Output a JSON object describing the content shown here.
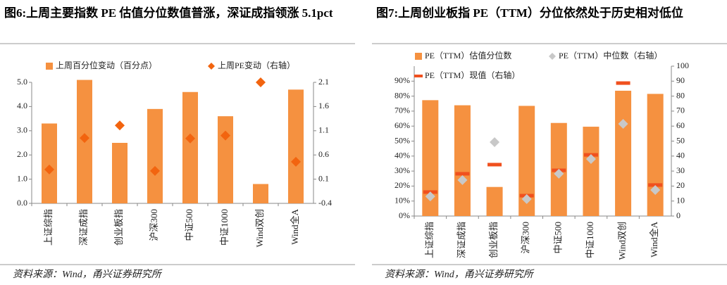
{
  "chart_data": [
    {
      "type": "bar",
      "title": "图6:上周主要指数 PE 估值分位数值普涨，深证成指领涨 5.1pct",
      "source": "资料来源：Wind，甬兴证券研究所",
      "categories": [
        "上证综指",
        "深证成指",
        "创业板指",
        "沪深300",
        "中证500",
        "中证1000",
        "Wind双创",
        "Wind全A"
      ],
      "ylim": [
        0,
        5
      ],
      "yticks": [
        {
          "value": 0,
          "label": "0.0"
        },
        {
          "value": 1,
          "label": "1.0"
        },
        {
          "value": 2,
          "label": "2.0"
        },
        {
          "value": 3,
          "label": "3.0"
        },
        {
          "value": 4,
          "label": "4.0"
        },
        {
          "value": 5,
          "label": "5.0"
        }
      ],
      "y2lim": [
        -0.4,
        2.1
      ],
      "y2ticks": [
        -0.4,
        0.1,
        0.6,
        1.1,
        1.6,
        2.1
      ],
      "series": [
        {
          "name": "上周百分位变动（百分点）",
          "marker": "bar",
          "color": "#f59140",
          "values": [
            3.3,
            5.1,
            2.5,
            3.9,
            4.6,
            3.6,
            0.8,
            4.7
          ]
        },
        {
          "name": "上周PE变动（右轴）",
          "marker": "diamond",
          "axis": "y2",
          "color": "#f2640f",
          "values": [
            0.3,
            0.95,
            1.21,
            0.27,
            0.94,
            1.0,
            2.1,
            0.46
          ]
        }
      ]
    },
    {
      "type": "bar",
      "title": "图7:上周创业板指 PE（TTM）分位依然处于历史相对低位",
      "source": "资料来源：Wind，甬兴证券研究所",
      "categories": [
        "上证综指",
        "深证成指",
        "创业板指",
        "沪深300",
        "中证500",
        "中证1000",
        "Wind双创",
        "Wind全A"
      ],
      "ylim": [
        0,
        100
      ],
      "yticks": [
        {
          "value": 0,
          "label": "0%"
        },
        {
          "value": 10,
          "label": "10%"
        },
        {
          "value": 20,
          "label": "20%"
        },
        {
          "value": 30,
          "label": "30%"
        },
        {
          "value": 40,
          "label": "40%"
        },
        {
          "value": 50,
          "label": "50%"
        },
        {
          "value": 60,
          "label": "60%"
        },
        {
          "value": 70,
          "label": "70%"
        },
        {
          "value": 80,
          "label": "80%"
        },
        {
          "value": 90,
          "label": "90%"
        }
      ],
      "y2lim": [
        0,
        100
      ],
      "y2ticks": [
        0,
        10,
        20,
        30,
        40,
        50,
        60,
        70,
        80,
        90,
        100
      ],
      "series": [
        {
          "name": "PE（TTM）估值分位数",
          "marker": "bar",
          "color": "#f59140",
          "values": [
            77.3,
            73.9,
            19.4,
            73.5,
            62.1,
            59.6,
            83.6,
            81.5
          ]
        },
        {
          "name": "PE（TTM）中位数（右轴）",
          "marker": "diamond",
          "axis": "y2",
          "color": "#c8c8c8",
          "values": [
            13.1,
            24,
            49.3,
            11.3,
            28.2,
            38,
            61.5,
            17.4
          ]
        },
        {
          "name": "PE（TTM）现值（右轴）",
          "marker": "dash",
          "axis": "y2",
          "color": "#f0501e",
          "values": [
            16,
            28.2,
            34.3,
            13.6,
            30.5,
            40.8,
            88.7,
            20.7
          ]
        }
      ]
    }
  ]
}
